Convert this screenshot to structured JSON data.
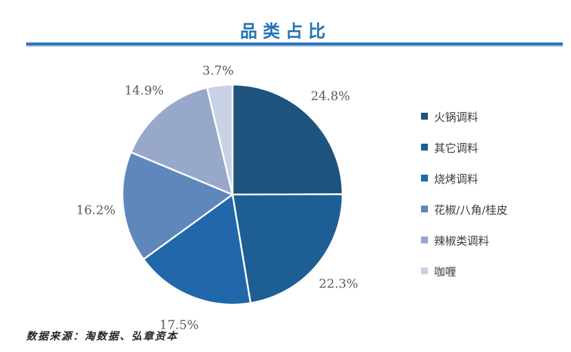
{
  "title": "品类占比",
  "source_note": "数据来源：淘数据、弘章资本",
  "colors": {
    "title": "#2573B5",
    "rule": "#2E74B5",
    "data_label_text": "#595959",
    "legend_text": "#3B3B3B",
    "source_text": "#262626",
    "slice_border": "#ffffff"
  },
  "chart_data": {
    "type": "pie",
    "title": "品类占比",
    "legend_position": "right",
    "start_angle_deg": 0,
    "direction": "clockwise",
    "categories": [
      "火锅调料",
      "其它调料",
      "烧烤调料",
      "花椒/八角/桂皮",
      "辣椒类调料",
      "咖喱"
    ],
    "values": [
      24.8,
      22.3,
      17.5,
      16.2,
      14.9,
      3.7
    ],
    "data_labels": [
      "24.8%",
      "22.3%",
      "17.5%",
      "16.2%",
      "14.9%",
      "3.7%"
    ],
    "slice_colors": [
      "#1E537E",
      "#1D5E94",
      "#2168AA",
      "#5F87BC",
      "#98A8CA",
      "#C9D2E5"
    ]
  }
}
